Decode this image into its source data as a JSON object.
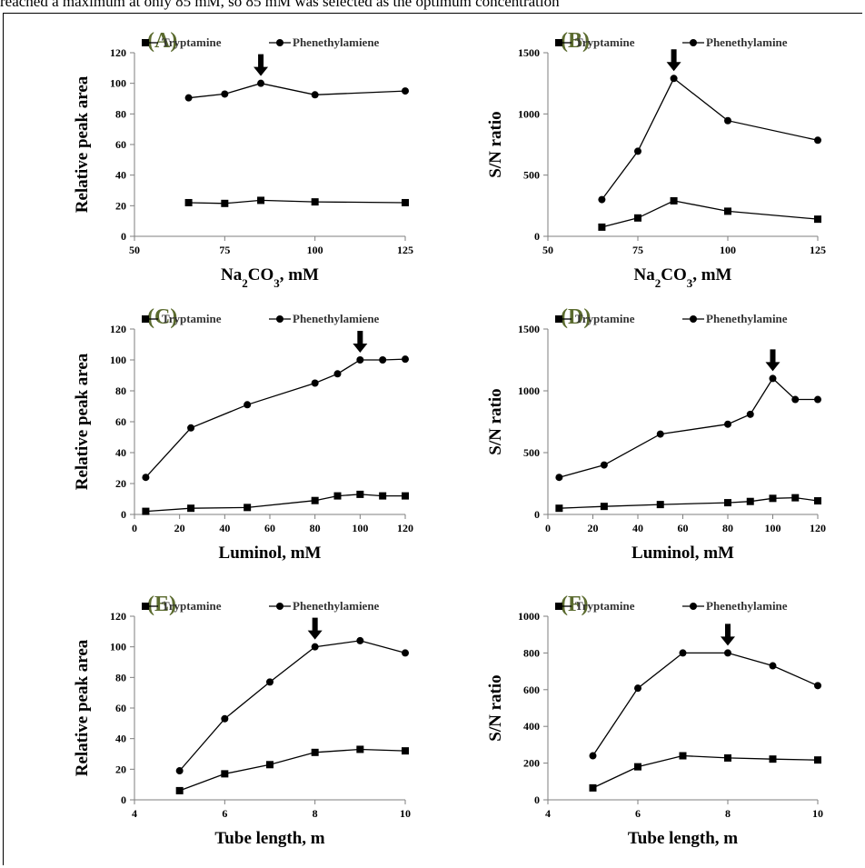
{
  "top_text": "reached a maximum at only 85 mM, so 85 mM was selected as the optimum concentration",
  "colors": {
    "panel_letter": "#5b6b2f",
    "axis": "#7f7f7f",
    "line": "#000000"
  },
  "chart_data": [
    {
      "type": "line",
      "panel_label": "(A)",
      "xlabel": "Na2CO3, mM",
      "ylabel": "Relative peak area",
      "xlim": [
        50,
        125
      ],
      "ylim": [
        0,
        120
      ],
      "xticks": [
        50,
        75,
        100,
        125
      ],
      "yticks": [
        0,
        20,
        40,
        60,
        80,
        100,
        120
      ],
      "arrow_x": 85,
      "arrow_y": 100,
      "series": [
        {
          "name": "Tryptamine",
          "marker": "square",
          "x": [
            65,
            75,
            85,
            100,
            125
          ],
          "y": [
            22,
            21.5,
            23.5,
            22.5,
            22
          ]
        },
        {
          "name": "Phenethylamiene",
          "marker": "circle",
          "x": [
            65,
            75,
            85,
            100,
            125
          ],
          "y": [
            90.5,
            93,
            100,
            92.5,
            95
          ]
        }
      ]
    },
    {
      "type": "line",
      "panel_label": "(B)",
      "xlabel": "Na2CO3, mM",
      "ylabel": "S/N ratio",
      "xlim": [
        50,
        125
      ],
      "ylim": [
        0,
        1500
      ],
      "xticks": [
        50,
        75,
        100,
        125
      ],
      "yticks": [
        0,
        500,
        1000,
        1500
      ],
      "arrow_x": 85,
      "arrow_y": 1290,
      "series": [
        {
          "name": "Tryptamine",
          "marker": "square",
          "x": [
            65,
            75,
            85,
            100,
            125
          ],
          "y": [
            75,
            150,
            290,
            205,
            140
          ]
        },
        {
          "name": "Phenethylamine",
          "marker": "circle",
          "x": [
            65,
            75,
            85,
            100,
            125
          ],
          "y": [
            300,
            695,
            1290,
            945,
            785
          ]
        }
      ]
    },
    {
      "type": "line",
      "panel_label": "(C)",
      "xlabel": "Luminol, mM",
      "ylabel": "Relative peak area",
      "xlim": [
        0,
        120
      ],
      "ylim": [
        0,
        120
      ],
      "xticks": [
        0,
        20,
        40,
        60,
        80,
        100,
        120
      ],
      "yticks": [
        0,
        20,
        40,
        60,
        80,
        100,
        120
      ],
      "arrow_x": 100,
      "arrow_y": 100,
      "series": [
        {
          "name": "Tryptamine",
          "marker": "square",
          "x": [
            5,
            25,
            50,
            80,
            90,
            100,
            110,
            120
          ],
          "y": [
            2,
            4,
            4.5,
            9,
            12,
            13,
            12,
            12
          ]
        },
        {
          "name": "Phenethylamiene",
          "marker": "circle",
          "x": [
            5,
            25,
            50,
            80,
            90,
            100,
            110,
            120
          ],
          "y": [
            24,
            56,
            71,
            85,
            91,
            100,
            100,
            100.5
          ]
        }
      ]
    },
    {
      "type": "line",
      "panel_label": "(D)",
      "xlabel": "Luminol, mM",
      "ylabel": "S/N ratio",
      "xlim": [
        0,
        120
      ],
      "ylim": [
        0,
        1500
      ],
      "xticks": [
        0,
        20,
        40,
        60,
        80,
        100,
        120
      ],
      "yticks": [
        0,
        500,
        1000,
        1500
      ],
      "arrow_x": 100,
      "arrow_y": 1100,
      "series": [
        {
          "name": "Tryptamine",
          "marker": "square",
          "x": [
            5,
            25,
            50,
            80,
            90,
            100,
            110,
            120
          ],
          "y": [
            50,
            65,
            80,
            95,
            105,
            130,
            135,
            110
          ]
        },
        {
          "name": "Phenethylamine",
          "marker": "circle",
          "x": [
            5,
            25,
            50,
            80,
            90,
            100,
            110,
            120
          ],
          "y": [
            300,
            400,
            650,
            730,
            810,
            1100,
            930,
            930
          ]
        }
      ]
    },
    {
      "type": "line",
      "panel_label": "(E)",
      "xlabel": "Tube length, m",
      "ylabel": "Relative peak area",
      "xlim": [
        4,
        10
      ],
      "ylim": [
        0,
        120
      ],
      "xticks": [
        4,
        6,
        8,
        10
      ],
      "yticks": [
        0,
        20,
        40,
        60,
        80,
        100,
        120
      ],
      "arrow_x": 8,
      "arrow_y": 100,
      "series": [
        {
          "name": "Tryptamine",
          "marker": "square",
          "x": [
            5,
            6,
            7,
            8,
            9,
            10
          ],
          "y": [
            6,
            17,
            23,
            31,
            33,
            32
          ]
        },
        {
          "name": "Phenethylamiene",
          "marker": "circle",
          "x": [
            5,
            6,
            7,
            8,
            9,
            10
          ],
          "y": [
            19,
            53,
            77,
            100,
            104,
            96
          ]
        }
      ]
    },
    {
      "type": "line",
      "panel_label": "(F)",
      "xlabel": "Tube length, m",
      "ylabel": "S/N ratio",
      "xlim": [
        4,
        10
      ],
      "ylim": [
        0,
        1000
      ],
      "xticks": [
        4,
        6,
        8,
        10
      ],
      "yticks": [
        0,
        200,
        400,
        600,
        800,
        1000
      ],
      "arrow_x": 8,
      "arrow_y": 800,
      "series": [
        {
          "name": "Tryptamine",
          "marker": "square",
          "x": [
            5,
            6,
            7,
            8,
            9,
            10
          ],
          "y": [
            65,
            180,
            240,
            228,
            222,
            217
          ]
        },
        {
          "name": "Phenethylamine",
          "marker": "circle",
          "x": [
            5,
            6,
            7,
            8,
            9,
            10
          ],
          "y": [
            240,
            608,
            800,
            800,
            730,
            622
          ]
        }
      ]
    }
  ]
}
